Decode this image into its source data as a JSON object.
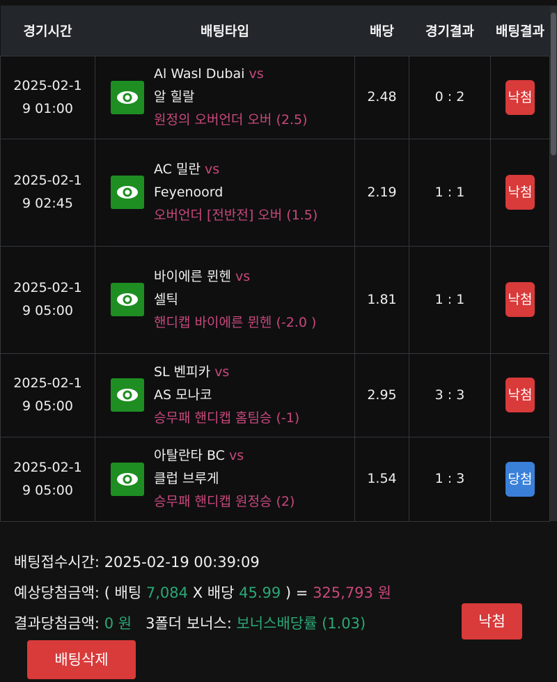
{
  "header": {
    "time": "경기시간",
    "bet_type": "배팅타입",
    "odds": "배당",
    "match_result": "경기결과",
    "bet_result": "배팅결과"
  },
  "rows": [
    {
      "time": "2025-02-19 01:00",
      "home": "Al Wasl Dubai",
      "vs": "vs",
      "away": "알 힐랄",
      "pick": "원정의 오버언더 오버 (2.5)",
      "odds": "2.48",
      "score": "0 : 2",
      "result": "낙첨",
      "result_status": "lose"
    },
    {
      "time": "2025-02-19 02:45",
      "home": "AC 밀란",
      "vs": "vs",
      "away": "Feyenoord",
      "pick": "오버언더 [전반전] 오버 (1.5)",
      "odds": "2.19",
      "score": "1 : 1",
      "result": "낙첨",
      "result_status": "lose"
    },
    {
      "time": "2025-02-19 05:00",
      "home": "바이에른 뮌헨",
      "vs": "vs",
      "away": "셀틱",
      "pick": "핸디캡 바이에른 뮌헨 (-2.0 )",
      "odds": "1.81",
      "score": "1 : 1",
      "result": "낙첨",
      "result_status": "lose"
    },
    {
      "time": "2025-02-19 05:00",
      "home": "SL 벤피카",
      "vs": "vs",
      "away": "AS 모나코",
      "pick": "승무패 핸디캡 홈팀승 (-1)",
      "odds": "2.95",
      "score": "3 : 3",
      "result": "낙첨",
      "result_status": "lose"
    },
    {
      "time": "2025-02-19 05:00",
      "home": "아탈란타 BC",
      "vs": "vs",
      "away": "클럽 브루게",
      "pick": "승무패 핸디캡 원정승 (2)",
      "odds": "1.54",
      "score": "1 : 3",
      "result": "당첨",
      "result_status": "win"
    }
  ],
  "summary": {
    "received_label": "배팅접수시간:",
    "received_value": "2025-02-19 00:39:09",
    "expected_label": "예상당첨금액:",
    "open_paren": "( 배팅",
    "stake": "7,084",
    "times": "X 배당",
    "total_odds": "45.99",
    "close": ") =",
    "expected_amount": "325,793 원",
    "actual_label": "결과당첨금액:",
    "actual_amount": "0 원",
    "bonus_label": "3폴더 보너스:",
    "bonus_value": "보너스배당률 (1.03)",
    "status_button": "낙첨",
    "delete_button": "배팅삭제"
  },
  "colors": {
    "lose": "#d93a3a",
    "win": "#3a80d9",
    "pink": "#c8487a",
    "green": "#2aa876",
    "eye": "#1e8e22"
  }
}
